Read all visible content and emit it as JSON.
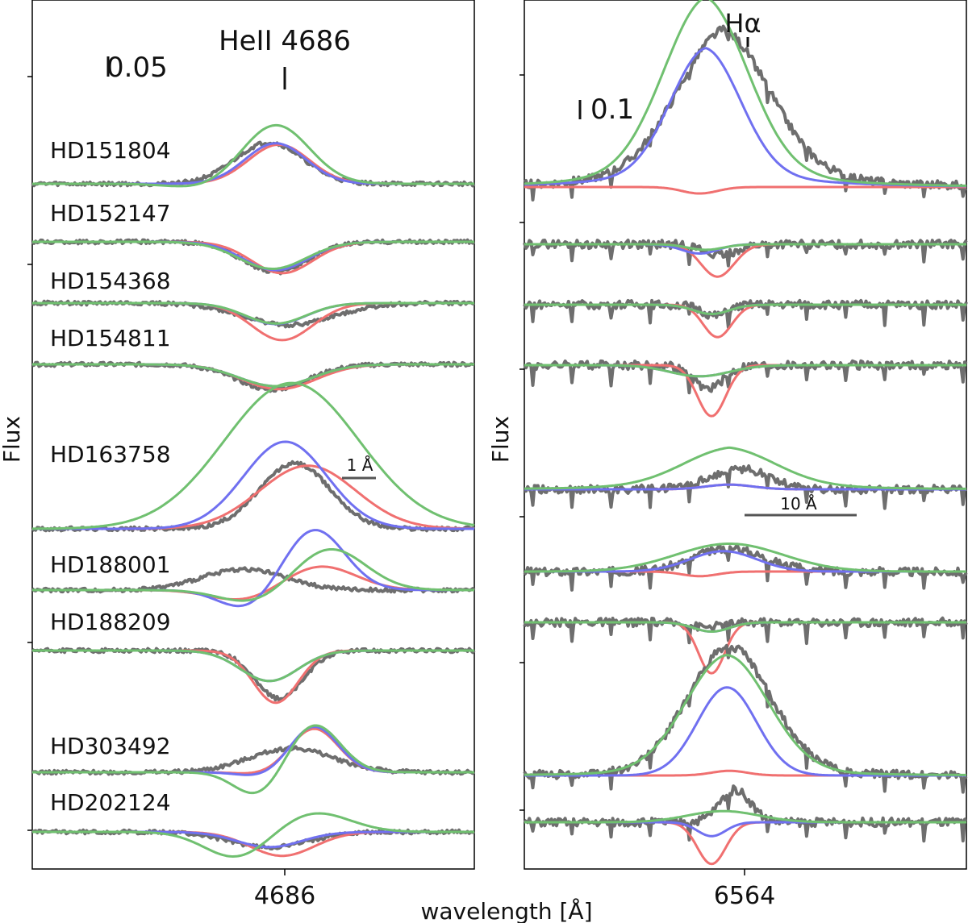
{
  "chart_data": [
    {
      "type": "line",
      "panel": "left",
      "title": "HeII 4686",
      "line_marker_label": "HeII 4686",
      "xlabel": "wavelength [Å]",
      "ylabel": "Flux",
      "x_tick": "4686",
      "x_center": 4686,
      "xlim": [
        4678.2,
        4692.0
      ],
      "scale_bar_flux": "0.05",
      "scale_bar_wavelength": "1 Å",
      "series_colors": {
        "observed": "#6e6e6e",
        "model_red": "#f07070",
        "model_blue": "#7070f0",
        "model_green": "#70c070"
      },
      "stars": [
        {
          "name": "HD151804",
          "obs": {
            "A": 0.95,
            "w": 1.05,
            "c": 4685.6
          },
          "red": {
            "A": 0.9,
            "w": 0.95,
            "c": 4685.9
          },
          "blue": {
            "A": 0.93,
            "w": 0.95,
            "c": 4685.8
          },
          "green": {
            "A": 1.35,
            "w": 1.05,
            "c": 4685.8,
            "dip": 0.1
          }
        },
        {
          "name": "HD152147",
          "obs": {
            "A": -0.7,
            "w": 1.0,
            "c": 4685.8
          },
          "red": {
            "A": -0.72,
            "w": 0.95,
            "c": 4686.0
          },
          "blue": {
            "A": -0.65,
            "w": 1.0,
            "c": 4685.8
          },
          "green": {
            "A": -0.62,
            "w": 1.05,
            "c": 4685.7
          }
        },
        {
          "name": "HD154368",
          "obs": {
            "A": -0.5,
            "w": 1.4,
            "c": 4686.2
          },
          "red": {
            "A": -0.85,
            "w": 0.95,
            "c": 4686.0
          },
          "blue": {
            "A": -0.48,
            "w": 0.95,
            "c": 4685.8
          },
          "green": {
            "A": -0.47,
            "w": 0.95,
            "c": 4685.8
          }
        },
        {
          "name": "HD154811",
          "obs": {
            "A": -0.58,
            "w": 1.1,
            "c": 4685.7
          },
          "red": {
            "A": -0.57,
            "w": 1.15,
            "c": 4685.9
          },
          "blue": {
            "A": -0.5,
            "w": 1.15,
            "c": 4685.8
          },
          "green": {
            "A": -0.5,
            "w": 1.15,
            "c": 4685.8
          }
        },
        {
          "name": "HD163758",
          "obs": {
            "A": 1.5,
            "w": 1.1,
            "c": 4686.4
          },
          "red": {
            "A": 1.45,
            "w": 1.5,
            "c": 4686.8
          },
          "blue": {
            "A": 2.0,
            "w": 1.3,
            "c": 4686.1
          },
          "green": {
            "A": 3.35,
            "w": 2.1,
            "c": 4686.3
          }
        },
        {
          "name": "HD188001",
          "obs": {
            "A": 0.48,
            "w": 1.3,
            "c": 4684.8
          },
          "red": {
            "A": 0.55,
            "w": 1.1,
            "c": 4687.2,
            "dip": 0.25
          },
          "blue": {
            "A": 1.4,
            "w": 0.95,
            "c": 4687.0,
            "dip": 0.45
          },
          "green": {
            "A": 0.95,
            "w": 1.1,
            "c": 4687.5,
            "dip": 0.3
          }
        },
        {
          "name": "HD188209",
          "obs": {
            "A": -1.1,
            "w": 0.75,
            "c": 4685.9
          },
          "red": {
            "A": -1.2,
            "w": 0.7,
            "c": 4685.8
          },
          "blue": {
            "A": -0.7,
            "w": 0.9,
            "c": 4685.6
          },
          "green": {
            "A": -0.7,
            "w": 0.9,
            "c": 4685.6
          }
        },
        {
          "name": "HD303492",
          "obs": {
            "A": 0.55,
            "w": 1.3,
            "c": 4686.3
          },
          "red": {
            "A": 1.0,
            "w": 0.75,
            "c": 4687.0,
            "dip": 0.05
          },
          "blue": {
            "A": 1.05,
            "w": 0.75,
            "c": 4687.0,
            "dip": 0.1
          },
          "green": {
            "A": 1.1,
            "w": 0.8,
            "c": 4687.0,
            "dip": 0.55
          }
        },
        {
          "name": "HD202124",
          "obs": {
            "A": -0.35,
            "w": 1.2,
            "c": 4685.6
          },
          "red": {
            "A": -0.55,
            "w": 1.0,
            "c": 4686.0
          },
          "blue": {
            "A": -0.35,
            "w": 1.0,
            "c": 4685.6
          },
          "green": {
            "A": 0.45,
            "w": 1.1,
            "c": 4687.0,
            "dip": 0.6
          }
        }
      ]
    },
    {
      "type": "line",
      "panel": "right",
      "title": "Hα",
      "line_marker_label": "Hα",
      "xlabel": "wavelength [Å]",
      "ylabel": "Flux",
      "x_tick": "6564",
      "x_center": 6564,
      "xlim": [
        6546.7,
        6584.0
      ],
      "scale_bar_flux": "0.1",
      "scale_bar_wavelength": "10 Å",
      "series_colors": {
        "observed": "#6e6e6e",
        "model_red": "#f07070",
        "model_blue": "#7070f0",
        "model_green": "#70c070"
      },
      "stars": [
        {
          "name": "HD151804",
          "obs": {
            "A": 1.35,
            "w": 4.0,
            "c": 6563.5,
            "wing": 0.35
          },
          "red": {
            "A": -0.07,
            "w": 1.5,
            "c": 6561.5
          },
          "blue": {
            "A": 1.25,
            "w": 3.0,
            "c": 6562.0,
            "wing": 0.25
          },
          "green": {
            "A": 1.7,
            "w": 3.6,
            "c": 6562.0,
            "wing": 0.35
          }
        },
        {
          "name": "HD152147",
          "obs": {
            "A": -0.12,
            "w": 1.3,
            "c": 6563.2
          },
          "red": {
            "A": -0.35,
            "w": 1.4,
            "c": 6563.0
          },
          "blue": {
            "A": -0.1,
            "w": 1.5,
            "c": 6561.5
          },
          "green": {
            "A": -0.06,
            "w": 1.5,
            "c": 6562.0
          }
        },
        {
          "name": "HD154368",
          "obs": {
            "A": -0.12,
            "w": 1.1,
            "c": 6562.8
          },
          "red": {
            "A": -0.35,
            "w": 1.2,
            "c": 6563.0
          },
          "blue": {
            "A": -0.1,
            "w": 1.5,
            "c": 6562.5
          },
          "green": {
            "A": -0.1,
            "w": 1.5,
            "c": 6562.5
          }
        },
        {
          "name": "HD154811",
          "obs": {
            "A": -0.25,
            "w": 1.3,
            "c": 6562.2
          },
          "red": {
            "A": -0.55,
            "w": 1.2,
            "c": 6562.5
          },
          "blue": {
            "A": -0.12,
            "w": 2.5,
            "c": 6561.5
          },
          "green": {
            "A": -0.12,
            "w": 2.5,
            "c": 6561.5
          }
        },
        {
          "name": "HD163758",
          "obs": {
            "A": 0.22,
            "w": 2.5,
            "c": 6565.0
          },
          "red": {
            "A": 0.05,
            "w": 2.0,
            "c": 6564.0
          },
          "blue": {
            "A": 0.05,
            "w": 2.0,
            "c": 6564.0
          },
          "green": {
            "A": 0.35,
            "w": 4.0,
            "c": 6564.0,
            "wing": 0.1
          }
        },
        {
          "name": "HD188001",
          "obs": {
            "A": 0.25,
            "w": 3.0,
            "c": 6564.0
          },
          "red": {
            "A": -0.05,
            "w": 1.5,
            "c": 6561.5
          },
          "blue": {
            "A": 0.22,
            "w": 2.8,
            "c": 6563.5
          },
          "green": {
            "A": 0.3,
            "w": 4.5,
            "c": 6564.0
          }
        },
        {
          "name": "HD188209",
          "obs": {
            "A": -0.05,
            "w": 1.5,
            "c": 6562.0
          },
          "red": {
            "A": -0.55,
            "w": 1.1,
            "c": 6562.5
          },
          "blue": {
            "A": -0.1,
            "w": 1.5,
            "c": 6562.5
          },
          "green": {
            "A": -0.1,
            "w": 1.5,
            "c": 6562.5
          }
        },
        {
          "name": "HD303492",
          "obs": {
            "A": 1.3,
            "w": 3.5,
            "c": 6564.0,
            "wing": 0.1
          },
          "red": {
            "A": 0.05,
            "w": 1.5,
            "c": 6564.0
          },
          "blue": {
            "A": 0.95,
            "w": 2.5,
            "c": 6563.8
          },
          "green": {
            "A": 1.2,
            "w": 3.5,
            "c": 6563.8,
            "wing": 0.1
          }
        },
        {
          "name": "HD202124",
          "obs": {
            "A": 0.35,
            "w": 1.3,
            "c": 6564.5
          },
          "red": {
            "A": -0.45,
            "w": 1.2,
            "c": 6562.5
          },
          "blue": {
            "A": -0.15,
            "w": 1.2,
            "c": 6562.5
          },
          "green": {
            "A": 0.12,
            "w": 3.0,
            "c": 6563.5
          }
        }
      ]
    }
  ]
}
